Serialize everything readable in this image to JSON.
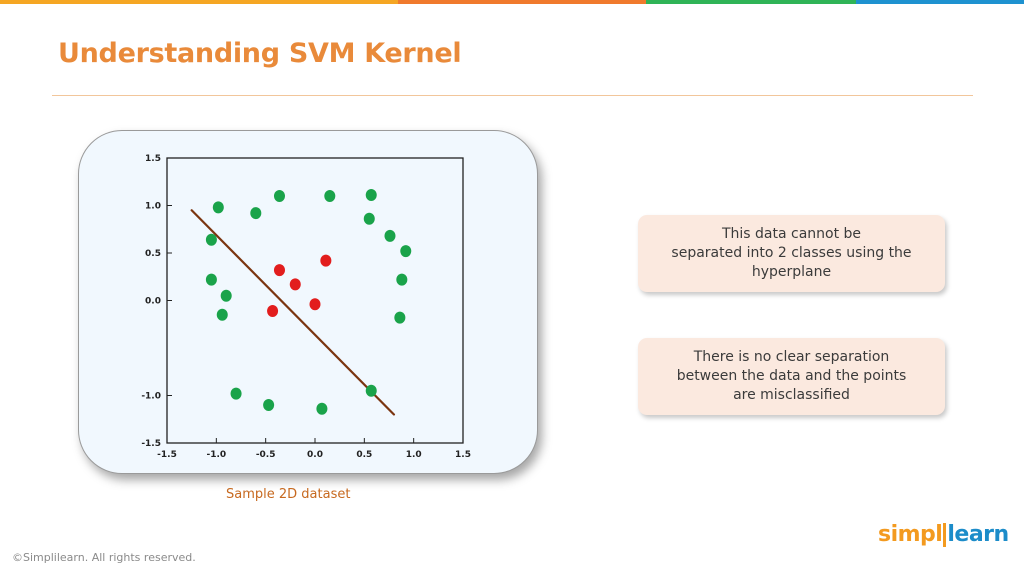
{
  "header": {
    "title": "Understanding SVM Kernel",
    "bar_colors": [
      "#f5a623",
      "#f07a2d",
      "#2fb457",
      "#1e92d0"
    ]
  },
  "chart": {
    "caption": "Sample 2D dataset"
  },
  "chart_data": {
    "type": "scatter",
    "xlim": [
      -1.5,
      1.5
    ],
    "ylim": [
      -1.5,
      1.5
    ],
    "x_ticks": [
      "-1.5",
      "-1.0",
      "-0.5",
      "0.0",
      "0.5",
      "1.0",
      "1.5"
    ],
    "y_ticks": [
      "1.5",
      "1.0",
      "0.5",
      "0.0",
      "-1.0",
      "-1.5"
    ],
    "grid": false,
    "series": [
      {
        "color": "#1aa34a",
        "points": [
          [
            -0.98,
            0.98
          ],
          [
            -0.6,
            0.92
          ],
          [
            -0.36,
            1.1
          ],
          [
            0.15,
            1.1
          ],
          [
            0.57,
            1.11
          ],
          [
            0.55,
            0.86
          ],
          [
            0.76,
            0.68
          ],
          [
            0.92,
            0.52
          ],
          [
            -1.05,
            0.64
          ],
          [
            -1.05,
            0.22
          ],
          [
            0.88,
            0.22
          ],
          [
            -0.9,
            0.05
          ],
          [
            -0.94,
            -0.15
          ],
          [
            0.86,
            -0.18
          ],
          [
            0.57,
            -0.95
          ],
          [
            -0.8,
            -0.98
          ],
          [
            -0.47,
            -1.1
          ],
          [
            0.07,
            -1.14
          ]
        ]
      },
      {
        "color": "#e21d1d",
        "points": [
          [
            -0.36,
            0.32
          ],
          [
            -0.2,
            0.17
          ],
          [
            0.11,
            0.42
          ],
          [
            -0.43,
            -0.11
          ],
          [
            0.0,
            -0.04
          ]
        ]
      }
    ],
    "line": {
      "color": "#7b3510",
      "points": [
        [
          -1.25,
          0.95
        ],
        [
          0.8,
          -1.2
        ]
      ]
    }
  },
  "notes": {
    "note1": [
      "This data cannot be",
      "separated into 2 classes using the",
      "hyperplane"
    ],
    "note2": [
      "There is no clear separation",
      "between the data and the points",
      "are misclassified"
    ]
  },
  "footer": {
    "copyright": "©Simplilearn. All rights reserved."
  },
  "logo": {
    "left": "simpl",
    "right": "learn"
  }
}
